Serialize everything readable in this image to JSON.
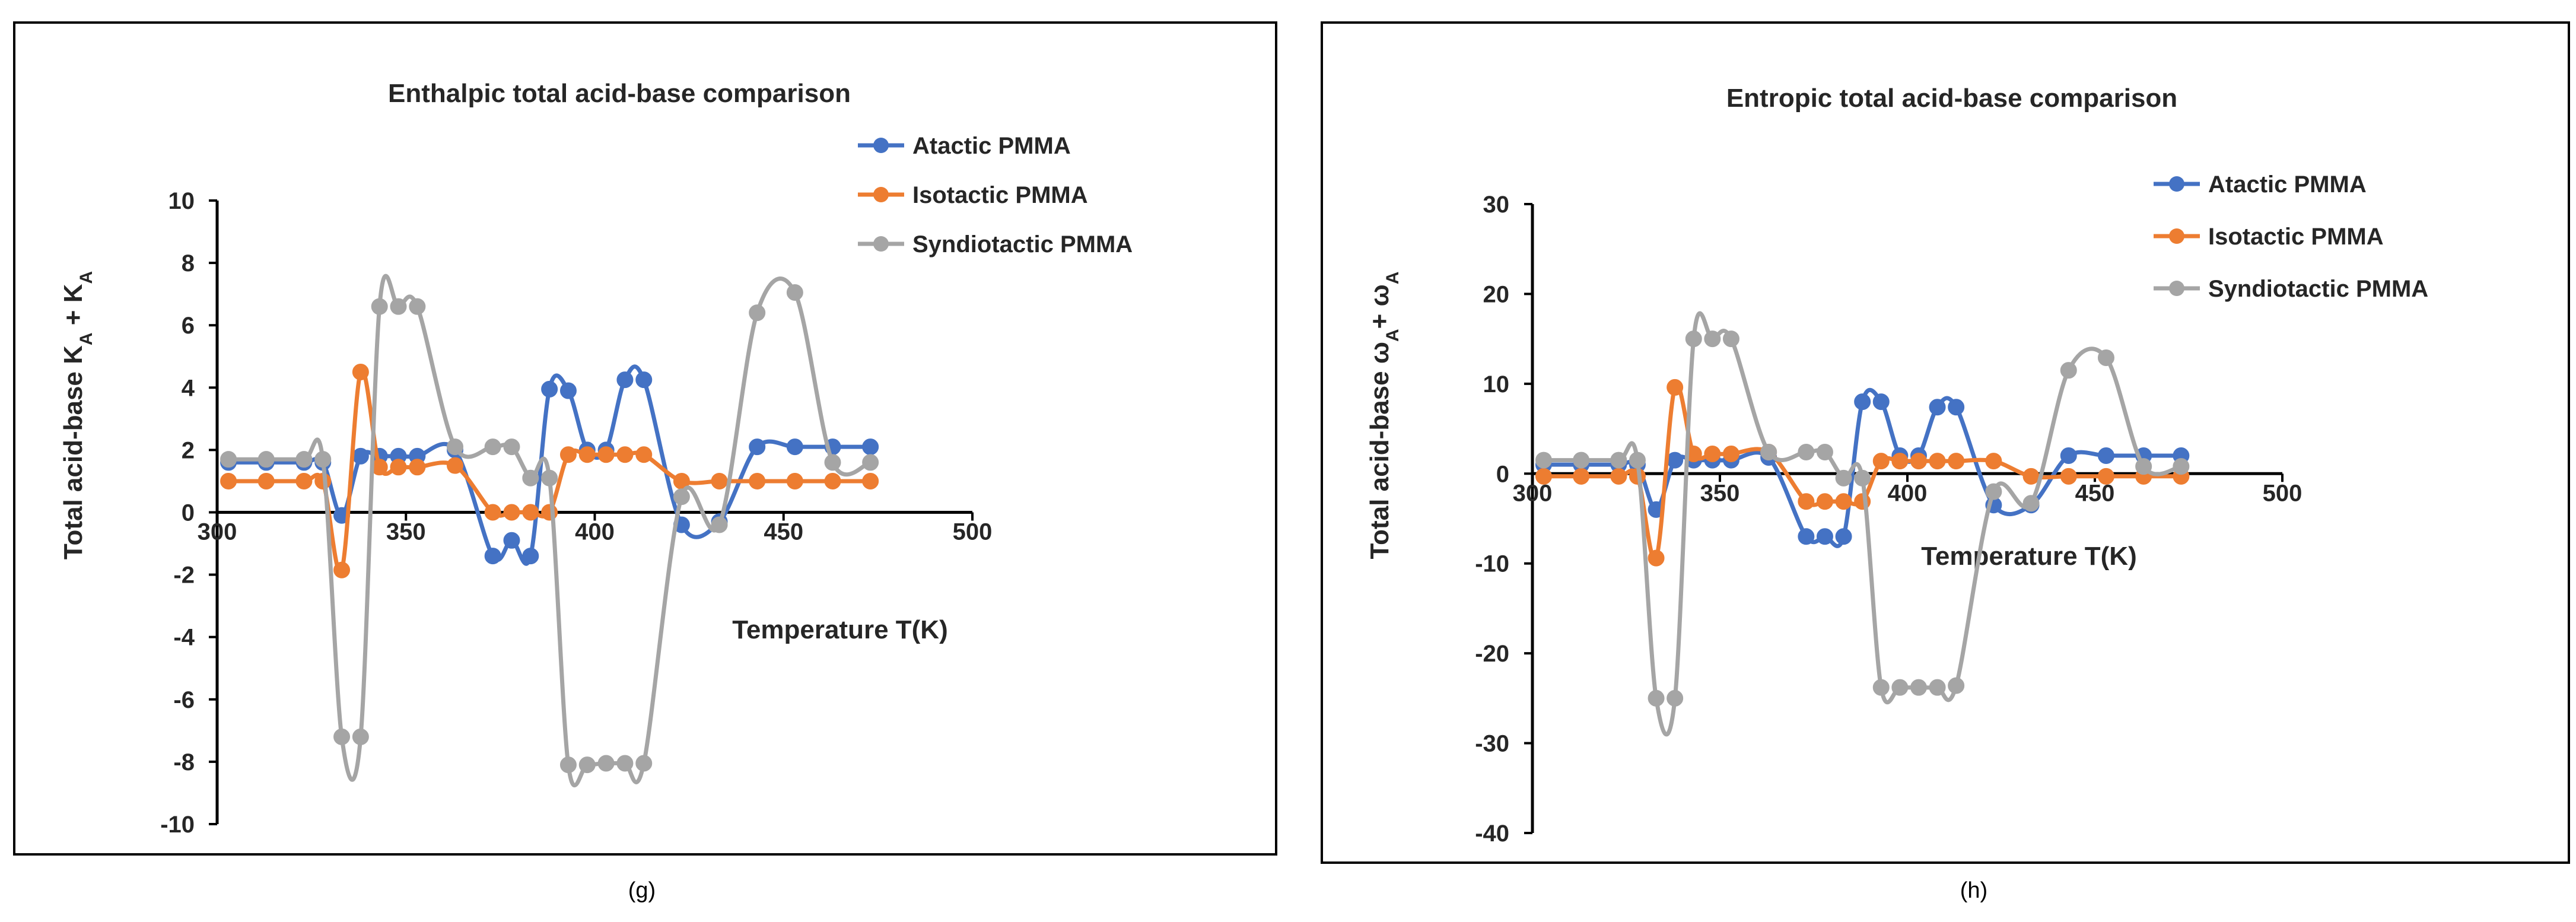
{
  "charts": [
    {
      "id": "g",
      "caption": "(g)",
      "chart_data": {
        "type": "line",
        "title": "Enthalpic total acid-base comparison",
        "xlabel": "Temperature T(K)",
        "ylabel_main": "Total acid-base K",
        "ylabel_sub1": "A",
        "ylabel_mid": " + K",
        "ylabel_sub2": "A",
        "xlim": [
          300,
          500
        ],
        "ylim": [
          -10,
          10
        ],
        "xticks": [
          300,
          350,
          400,
          450,
          500
        ],
        "xtick_labels": [
          "300",
          "350",
          "400",
          "450",
          "500"
        ],
        "yticks": [
          10,
          8,
          6,
          4,
          2,
          0,
          -2,
          -4,
          -6,
          -8,
          -10
        ],
        "ytick_labels": [
          "10",
          "8",
          "6",
          "4",
          "2",
          "0",
          "-2",
          "-4",
          "-6",
          "-8",
          "-10"
        ],
        "legend_position": "top-right",
        "smooth": true,
        "series": [
          {
            "name": "Atactic PMMA",
            "color": "#4472C4",
            "x": [
              303,
              313,
              323,
              328,
              333,
              338,
              343,
              348,
              353,
              363,
              373,
              378,
              383,
              388,
              393,
              398,
              403,
              408,
              413,
              423,
              433,
              443,
              453,
              463,
              473
            ],
            "y": [
              1.6,
              1.6,
              1.6,
              1.6,
              -0.1,
              1.8,
              1.8,
              1.8,
              1.8,
              2.0,
              -1.4,
              -0.9,
              -1.4,
              3.95,
              3.9,
              2.0,
              2.0,
              4.25,
              4.25,
              -0.4,
              -0.3,
              2.1,
              2.1,
              2.1,
              2.1
            ]
          },
          {
            "name": "Isotactic PMMA",
            "color": "#ED7D31",
            "x": [
              303,
              313,
              323,
              328,
              333,
              338,
              343,
              348,
              353,
              363,
              373,
              378,
              383,
              388,
              393,
              398,
              403,
              408,
              413,
              423,
              433,
              443,
              453,
              463,
              473
            ],
            "y": [
              1.0,
              1.0,
              1.0,
              1.0,
              -1.85,
              4.5,
              1.45,
              1.45,
              1.45,
              1.5,
              0.0,
              0.0,
              0.0,
              0.0,
              1.85,
              1.85,
              1.85,
              1.85,
              1.85,
              1.0,
              1.0,
              1.0,
              1.0,
              1.0,
              1.0
            ]
          },
          {
            "name": "Syndiotactic PMMA",
            "color": "#A5A5A5",
            "x": [
              303,
              313,
              323,
              328,
              333,
              338,
              343,
              348,
              353,
              363,
              373,
              378,
              383,
              388,
              393,
              398,
              403,
              408,
              413,
              423,
              433,
              443,
              453,
              463,
              473
            ],
            "y": [
              1.7,
              1.7,
              1.7,
              1.7,
              -7.2,
              -7.2,
              6.6,
              6.6,
              6.6,
              2.1,
              2.1,
              2.1,
              1.1,
              1.1,
              -8.1,
              -8.1,
              -8.05,
              -8.05,
              -8.05,
              0.5,
              -0.4,
              6.4,
              7.05,
              1.6,
              1.6
            ]
          }
        ]
      }
    },
    {
      "id": "h",
      "caption": "(h)",
      "chart_data": {
        "type": "line",
        "title": "Entropic total acid-base comparison",
        "xlabel": "Temperature T(K)",
        "ylabel_main": "Total acid-base ω",
        "ylabel_sub1": "A",
        "ylabel_mid": "+ ω",
        "ylabel_sub2": "A",
        "xlim": [
          300,
          500
        ],
        "ylim": [
          -40,
          30
        ],
        "xticks": [
          300,
          350,
          400,
          450,
          500
        ],
        "xtick_labels": [
          "300",
          "350",
          "400",
          "450",
          "500"
        ],
        "yticks": [
          30,
          20,
          10,
          0,
          -10,
          -20,
          -30,
          -40
        ],
        "ytick_labels": [
          "30",
          "20",
          "10",
          "0",
          "-10",
          "-20",
          "-30",
          "-40"
        ],
        "legend_position": "top-right",
        "smooth": true,
        "series": [
          {
            "name": "Atactic PMMA",
            "color": "#4472C4",
            "x": [
              303,
              313,
              323,
              328,
              333,
              338,
              343,
              348,
              353,
              363,
              373,
              378,
              383,
              388,
              393,
              398,
              403,
              408,
              413,
              423,
              433,
              443,
              453,
              463,
              473
            ],
            "y": [
              1.0,
              1.0,
              1.0,
              1.0,
              -4.0,
              1.5,
              1.5,
              1.5,
              1.5,
              1.8,
              -7.0,
              -7.0,
              -7.0,
              8.0,
              8.0,
              2.0,
              2.0,
              7.4,
              7.4,
              -3.5,
              -3.5,
              2.0,
              2.0,
              2.0,
              2.0
            ]
          },
          {
            "name": "Isotactic PMMA",
            "color": "#ED7D31",
            "x": [
              303,
              313,
              323,
              328,
              333,
              338,
              343,
              348,
              353,
              363,
              373,
              378,
              383,
              388,
              393,
              398,
              403,
              408,
              413,
              423,
              433,
              443,
              453,
              463,
              473
            ],
            "y": [
              -0.3,
              -0.3,
              -0.3,
              -0.3,
              -9.4,
              9.6,
              2.2,
              2.2,
              2.2,
              2.4,
              -3.1,
              -3.1,
              -3.1,
              -3.1,
              1.4,
              1.4,
              1.4,
              1.4,
              1.4,
              1.4,
              -0.3,
              -0.3,
              -0.3,
              -0.3,
              -0.3
            ]
          },
          {
            "name": "Syndiotactic PMMA",
            "color": "#A5A5A5",
            "x": [
              303,
              313,
              323,
              328,
              333,
              338,
              343,
              348,
              353,
              363,
              373,
              378,
              383,
              388,
              393,
              398,
              403,
              408,
              413,
              423,
              433,
              443,
              453,
              463,
              473
            ],
            "y": [
              1.5,
              1.5,
              1.5,
              1.5,
              -25.0,
              -25.0,
              15.0,
              15.0,
              15.0,
              2.4,
              2.4,
              2.4,
              -0.5,
              -0.5,
              -23.8,
              -23.8,
              -23.8,
              -23.8,
              -23.6,
              -2.0,
              -3.3,
              11.5,
              12.9,
              0.8,
              0.8
            ]
          }
        ]
      }
    }
  ]
}
